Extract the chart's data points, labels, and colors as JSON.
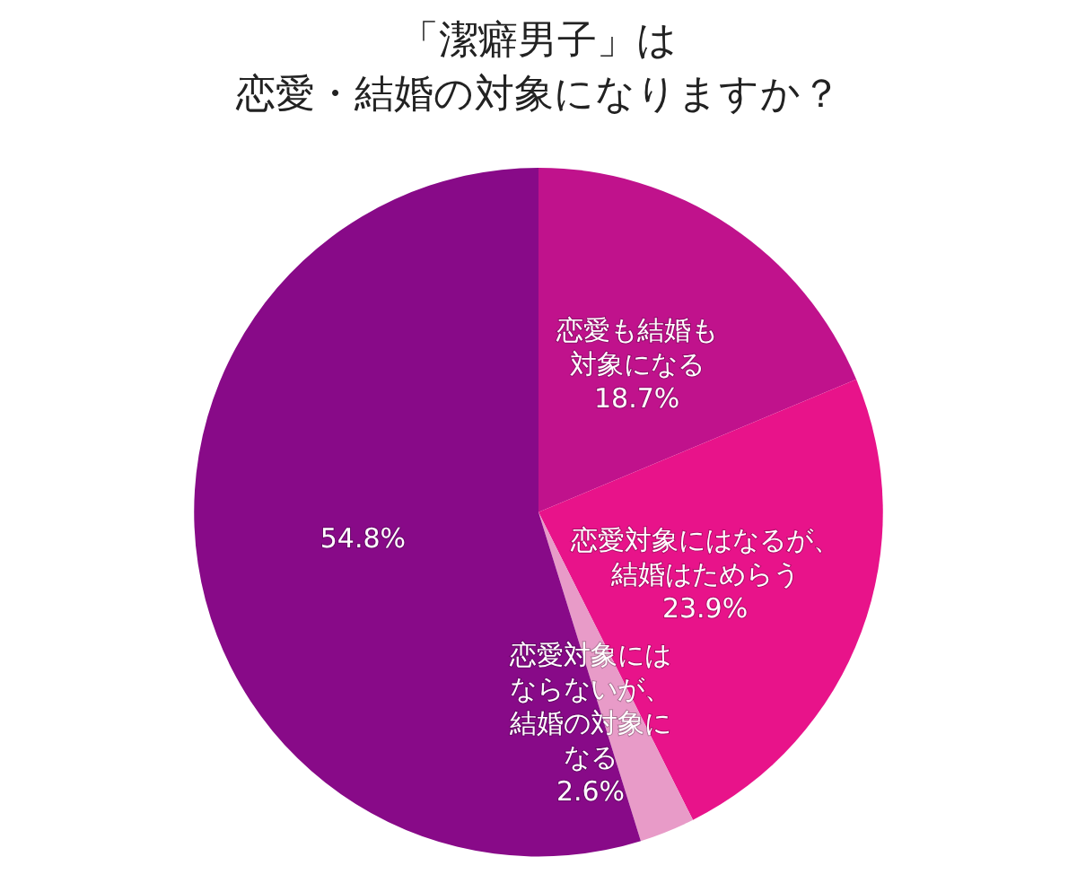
{
  "chart_data": {
    "type": "pie",
    "title": "「潔癖男子」は",
    "subtitle": "恋愛・結婚の対象になりますか？",
    "categories": [
      "恋愛も結婚も対象になる",
      "恋愛対象にはなるが、結婚はためらう",
      "恋愛対象にはならないが、結婚の対象になる",
      null
    ],
    "values": [
      18.7,
      23.9,
      2.6,
      54.8
    ],
    "value_labels": [
      "18.7%",
      "23.9%",
      "2.6%",
      "54.8%"
    ],
    "colors": [
      "#c0128c",
      "#e8138a",
      "#e89bc8",
      "#880a88"
    ]
  }
}
